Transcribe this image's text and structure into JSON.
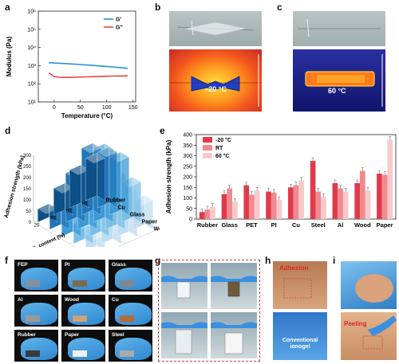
{
  "panels": {
    "a": {
      "label": "a"
    },
    "b": {
      "label": "b",
      "temp_text": "−20 °C"
    },
    "c": {
      "label": "c",
      "temp_text": "60 °C"
    },
    "d": {
      "label": "d"
    },
    "e": {
      "label": "e"
    },
    "f": {
      "label": "f",
      "materials": [
        "FEP",
        "PI",
        "Glass",
        "Al",
        "Wood",
        "Cu",
        "Rubber",
        "Paper",
        "Steel"
      ]
    },
    "g": {
      "label": "g"
    },
    "h": {
      "label": "h",
      "top_text": "Adhesion",
      "bottom_text": "Conventional\nionogel"
    },
    "i": {
      "label": "i",
      "bottom_text": "Peeling"
    }
  },
  "colors": {
    "gprime": "#2a8fd6",
    "gdoubleprime": "#e8424a",
    "bar_m20": "#e03a4a",
    "bar_rt": "#f08a8f",
    "bar_60": "#f7c9cb"
  },
  "chart_data": [
    {
      "id": "a",
      "type": "line",
      "xlabel": "Temperature (°C)",
      "ylabel": "Modulus (Pa)",
      "xlim": [
        -30,
        155
      ],
      "yscale": "log",
      "ylim": [
        10,
        1000000
      ],
      "xticks": [
        0,
        50,
        100,
        150
      ],
      "yticks": [
        {
          "v": 10,
          "l": "10¹"
        },
        {
          "v": 100,
          "l": "10²"
        },
        {
          "v": 1000,
          "l": "10³"
        },
        {
          "v": 10000,
          "l": "10⁴"
        },
        {
          "v": 100000,
          "l": "10⁵"
        },
        {
          "v": 1000000,
          "l": "10⁶"
        }
      ],
      "legend": "top-right",
      "series": [
        {
          "name": "G'",
          "x": [
            -10,
            0,
            10,
            20,
            30,
            40,
            50,
            60,
            70,
            80,
            90,
            100,
            110,
            120,
            130,
            140
          ],
          "y": [
            1450,
            1400,
            1350,
            1300,
            1250,
            1200,
            1150,
            1100,
            1050,
            1000,
            950,
            900,
            850,
            800,
            760,
            700
          ]
        },
        {
          "name": "G''",
          "x": [
            -10,
            0,
            10,
            20,
            30,
            40,
            50,
            60,
            70,
            80,
            90,
            100,
            110,
            120,
            130,
            140
          ],
          "y": [
            400,
            250,
            230,
            225,
            225,
            230,
            235,
            240,
            245,
            250,
            255,
            260,
            265,
            270,
            270,
            275
          ]
        }
      ]
    },
    {
      "id": "e",
      "type": "bar",
      "ylabel": "Adhesion strength (kPa)",
      "ylim": [
        0,
        400
      ],
      "yticks": [
        0,
        50,
        100,
        150,
        200,
        250,
        300,
        350,
        400
      ],
      "categories": [
        "Rubber",
        "Glass",
        "PET",
        "PI",
        "Cu",
        "Steel",
        "Al",
        "Wood",
        "Paper"
      ],
      "legend": "top-left",
      "series": [
        {
          "name": "-20 °C",
          "values": [
            33,
            118,
            160,
            130,
            150,
            275,
            170,
            170,
            215
          ]
        },
        {
          "name": "RT",
          "values": [
            45,
            145,
            115,
            125,
            160,
            130,
            145,
            228,
            210
          ]
        },
        {
          "name": "60 °C",
          "values": [
            58,
            82,
            135,
            90,
            182,
            105,
            130,
            135,
            375
          ]
        }
      ]
    },
    {
      "id": "d",
      "type": "bar",
      "ylabel": "Adhesion strength (kPa)",
      "zticks": [
        0,
        50,
        100,
        150,
        200,
        250,
        300
      ],
      "xlabel": "IL content (%)",
      "x_categories": [
        "20",
        "40",
        "60",
        "80"
      ],
      "y_categories": [
        "Rubber",
        "Cu",
        "Glass",
        "Paper",
        "Wood"
      ],
      "values": [
        [
          60,
          120,
          170,
          190
        ],
        [
          100,
          220,
          300,
          250
        ],
        [
          140,
          280,
          330,
          260
        ],
        [
          90,
          200,
          250,
          180
        ],
        [
          70,
          150,
          200,
          130
        ]
      ]
    }
  ]
}
